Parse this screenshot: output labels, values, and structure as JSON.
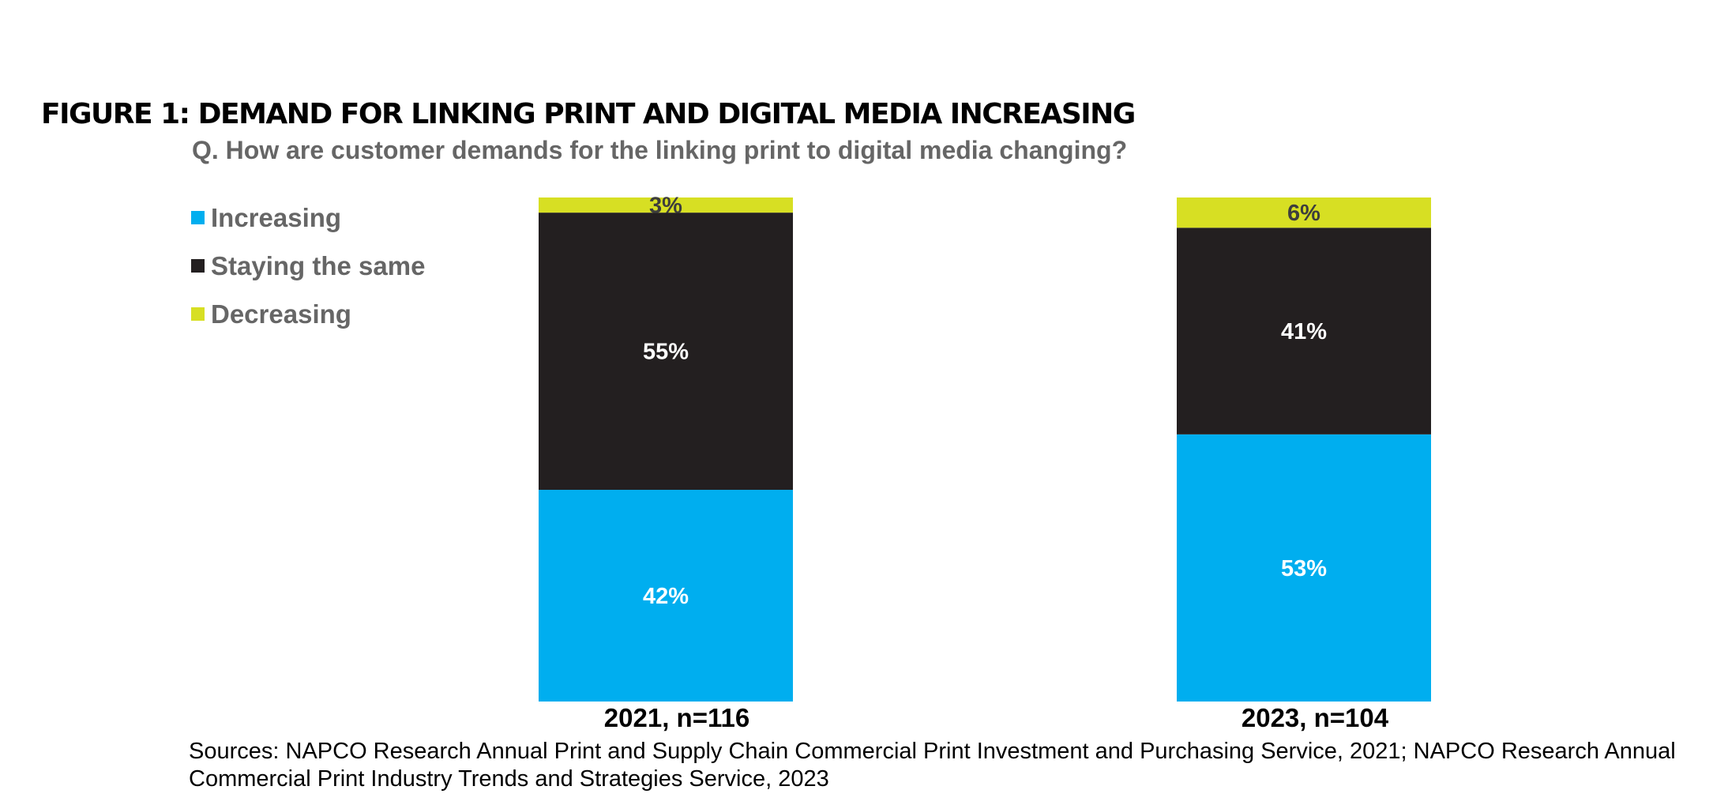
{
  "chart_data": {
    "type": "bar",
    "stacked": true,
    "title": "FIGURE 1: DEMAND FOR LINKING PRINT AND DIGITAL MEDIA INCREASING",
    "subtitle": "Q. How are customer demands for the linking print to digital media changing?",
    "categories": [
      "2021, n=116",
      "2023, n=104"
    ],
    "series": [
      {
        "name": "Increasing",
        "values": [
          42,
          53
        ],
        "labels": [
          "42%",
          "53%"
        ],
        "color": "#00aeef",
        "label_color": "#ffffff"
      },
      {
        "name": "Staying the same",
        "values": [
          55,
          41
        ],
        "labels": [
          "55%",
          "41%"
        ],
        "color": "#231f20",
        "label_color": "#ffffff"
      },
      {
        "name": "Decreasing",
        "values": [
          3,
          6
        ],
        "labels": [
          "3%",
          "6%"
        ],
        "color": "#d7df23",
        "label_color": "#3d3d3d"
      }
    ],
    "legend_position": "top-left",
    "grid": false,
    "ylim": [
      0,
      100
    ]
  },
  "source_text": "Sources: NAPCO Research Annual Print and Supply Chain Commercial Print Investment and Purchasing Service, 2021; NAPCO Research Annual Commercial Print Industry Trends and Strategies Service, 2023"
}
